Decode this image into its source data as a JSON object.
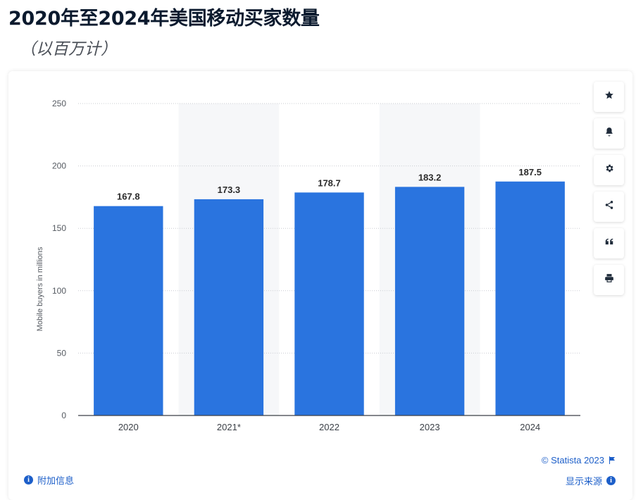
{
  "page": {
    "title": "2020年至2024年美国移动买家数量",
    "subtitle": "（以百万计）"
  },
  "chart_data": {
    "type": "bar",
    "categories": [
      "2020",
      "2021*",
      "2022",
      "2023",
      "2024"
    ],
    "values": [
      167.8,
      173.3,
      178.7,
      183.2,
      187.5
    ],
    "value_labels": [
      "167.8",
      "173.3",
      "178.7",
      "183.2",
      "187.5"
    ],
    "ylabel": "Mobile buyers in millions",
    "ylim": [
      0,
      250
    ],
    "yticks": [
      0,
      50,
      100,
      150,
      200,
      250
    ],
    "grid": true,
    "bar_color": "#2a74df",
    "shaded_columns": [
      1,
      3
    ]
  },
  "toolbar": {
    "icons": [
      "star-icon",
      "bell-icon",
      "gear-icon",
      "share-icon",
      "quote-icon",
      "print-icon"
    ]
  },
  "footer": {
    "additional_info": "附加信息",
    "copyright": "© Statista 2023",
    "show_source": "显示来源"
  },
  "colors": {
    "link": "#1d5fc9",
    "bar": "#2a74df",
    "title": "#0b1a2e"
  }
}
